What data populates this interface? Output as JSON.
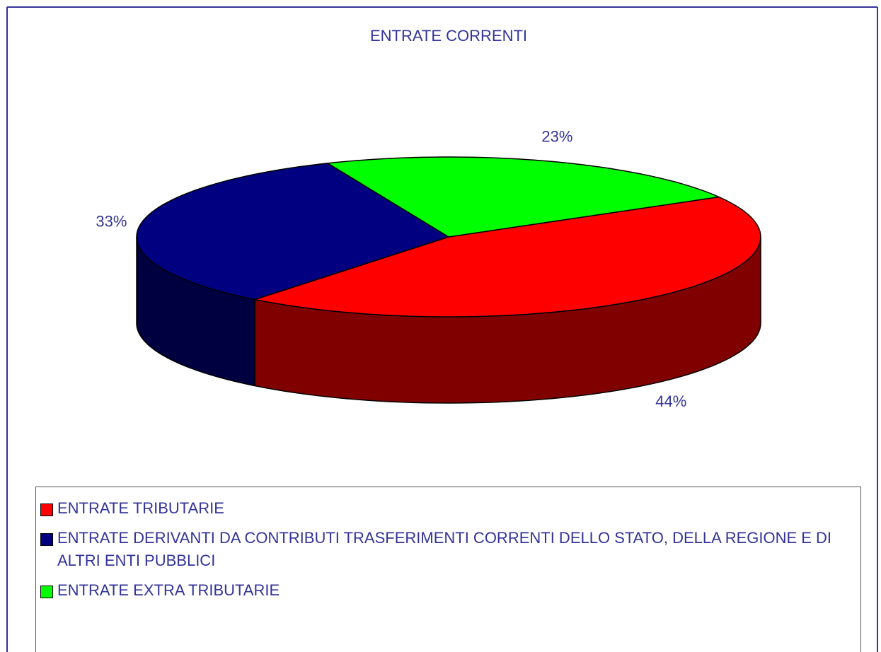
{
  "chart_data": {
    "type": "pie",
    "title": "ENTRATE CORRENTI",
    "categories": [
      "ENTRATE TRIBUTARIE",
      "ENTRATE DERIVANTI DA CONTRIBUTI TRASFERIMENTI CORRENTI DELLO STATO, DELLA REGIONE E DI ALTRI ENTI PUBBLICI",
      "ENTRATE EXTRA TRIBUTARIE"
    ],
    "values": [
      44,
      33,
      23
    ],
    "value_labels": [
      "44%",
      "33%",
      "23%"
    ],
    "colors": [
      "#ff0000",
      "#000080",
      "#00ff00"
    ],
    "legend": "bottom"
  }
}
